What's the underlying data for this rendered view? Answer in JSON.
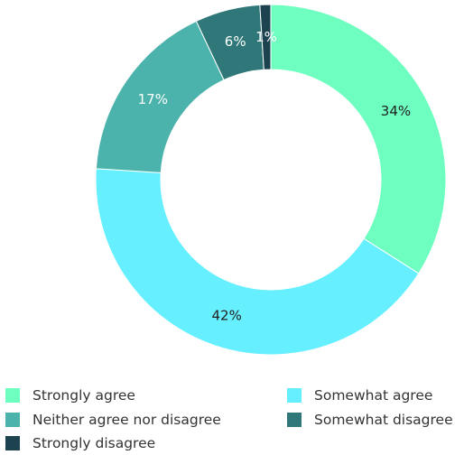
{
  "chart_data": {
    "type": "pie",
    "variant": "donut",
    "categories": [
      "Strongly agree",
      "Somewhat agree",
      "Neither agree nor disagree",
      "Somewhat disagree",
      "Strongly disagree"
    ],
    "values": [
      34,
      42,
      17,
      6,
      1
    ],
    "labels": [
      "34%",
      "42%",
      "17%",
      "6%",
      "1%"
    ],
    "colors": [
      "#6effc0",
      "#66f0ff",
      "#4bb3ac",
      "#2f7778",
      "#1d4350"
    ],
    "label_colors": [
      "#222222",
      "#222222",
      "#ffffff",
      "#ffffff",
      "#ffffff"
    ],
    "legend_position": "bottom",
    "title": ""
  },
  "legend": {
    "items": [
      {
        "label": "Strongly agree",
        "color": "#6effc0"
      },
      {
        "label": "Somewhat agree",
        "color": "#66f0ff"
      },
      {
        "label": "Neither agree nor disagree",
        "color": "#4bb3ac"
      },
      {
        "label": "Somewhat disagree",
        "color": "#2f7778"
      },
      {
        "label": "Strongly disagree",
        "color": "#1d4350"
      }
    ]
  }
}
